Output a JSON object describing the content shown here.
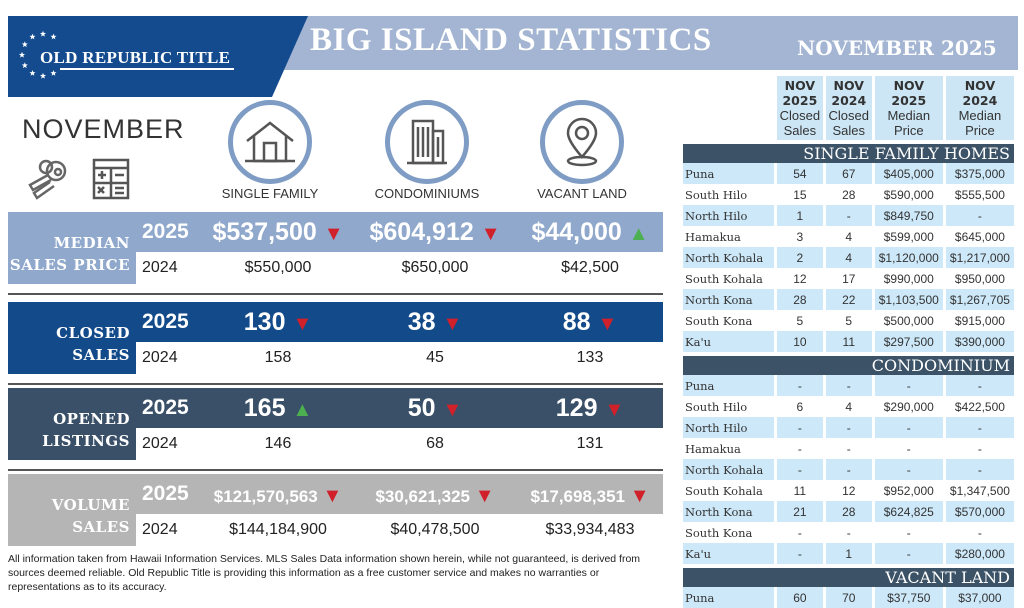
{
  "header": {
    "logo": "OLD REPUBLIC TITLE",
    "title": "BIG ISLAND STATISTICS",
    "subtitle": "NOVEMBER 2025",
    "month": "NOVEMBER"
  },
  "categories": [
    {
      "label": "SINGLE FAMILY",
      "icon": "house-icon"
    },
    {
      "label": "CONDOMINIUMS",
      "icon": "building-icon"
    },
    {
      "label": "VACANT LAND",
      "icon": "map-pin-icon"
    }
  ],
  "sections": [
    {
      "label1": "MEDIAN",
      "label2": "SALES PRICE",
      "color": "#8fa8cc",
      "year_current": "2025",
      "year_prior": "2024",
      "current": [
        "$537,500",
        "$604,912",
        "$44,000"
      ],
      "trend": [
        "down",
        "down",
        "up"
      ],
      "prior": [
        "$550,000",
        "$650,000",
        "$42,500"
      ]
    },
    {
      "label1": "CLOSED",
      "label2": "SALES",
      "color": "#134a8a",
      "year_current": "2025",
      "year_prior": "2024",
      "current": [
        "130",
        "38",
        "88"
      ],
      "trend": [
        "down",
        "down",
        "down"
      ],
      "prior": [
        "158",
        "45",
        "133"
      ]
    },
    {
      "label1": "OPENED",
      "label2": "LISTINGS",
      "color": "#3a5068",
      "year_current": "2025",
      "year_prior": "2024",
      "current": [
        "165",
        "50",
        "129"
      ],
      "trend": [
        "up",
        "down",
        "down"
      ],
      "prior": [
        "146",
        "68",
        "131"
      ]
    },
    {
      "label1": "VOLUME",
      "label2": "SALES",
      "color": "#b5b5b5",
      "year_current": "2025",
      "year_prior": "2024",
      "current": [
        "$121,570,563",
        "$30,621,325",
        "$17,698,351"
      ],
      "trend": [
        "down",
        "down",
        "down"
      ],
      "prior": [
        "$144,184,900",
        "$40,478,500",
        "$33,934,483"
      ]
    }
  ],
  "trend_colors": {
    "down": "#d0202a",
    "up": "#4caf50"
  },
  "footer": "All information taken from Hawaii Information Services.  MLS Sales Data information shown herein, while not guaranteed, is derived from sources deemed reliable.  Old Republic Title is providing this information as a free customer service and makes no warranties or representations as to its accuracy.",
  "table": {
    "columns": [
      {
        "l1": "NOV",
        "l2": "2025",
        "l3": "Closed",
        "l4": "Sales"
      },
      {
        "l1": "NOV",
        "l2": "2024",
        "l3": "Closed",
        "l4": "Sales"
      },
      {
        "l1": "NOV",
        "l2": "2025",
        "l3": "Median",
        "l4": "Price"
      },
      {
        "l1": "NOV",
        "l2": "2024",
        "l3": "Median",
        "l4": "Price"
      }
    ],
    "groups": [
      {
        "title": "SINGLE FAMILY HOMES",
        "rows": [
          [
            "Puna",
            "54",
            "67",
            "$405,000",
            "$375,000"
          ],
          [
            "South Hilo",
            "15",
            "28",
            "$590,000",
            "$555,500"
          ],
          [
            "North Hilo",
            "1",
            "-",
            "$849,750",
            "-"
          ],
          [
            "Hamakua",
            "3",
            "4",
            "$599,000",
            "$645,000"
          ],
          [
            "North Kohala",
            "2",
            "4",
            "$1,120,000",
            "$1,217,000"
          ],
          [
            "South Kohala",
            "12",
            "17",
            "$990,000",
            "$950,000"
          ],
          [
            "North Kona",
            "28",
            "22",
            "$1,103,500",
            "$1,267,705"
          ],
          [
            "South Kona",
            "5",
            "5",
            "$500,000",
            "$915,000"
          ],
          [
            "Ka'u",
            "10",
            "11",
            "$297,500",
            "$390,000"
          ]
        ]
      },
      {
        "title": "CONDOMINIUM",
        "rows": [
          [
            "Puna",
            "-",
            "-",
            "-",
            "-"
          ],
          [
            "South Hilo",
            "6",
            "4",
            "$290,000",
            "$422,500"
          ],
          [
            "North Hilo",
            "-",
            "-",
            "-",
            "-"
          ],
          [
            "Hamakua",
            "-",
            "-",
            "-",
            "-"
          ],
          [
            "North Kohala",
            "-",
            "-",
            "-",
            "-"
          ],
          [
            "South Kohala",
            "11",
            "12",
            "$952,000",
            "$1,347,500"
          ],
          [
            "North Kona",
            "21",
            "28",
            "$624,825",
            "$570,000"
          ],
          [
            "South Kona",
            "-",
            "-",
            "-",
            "-"
          ],
          [
            "Ka'u",
            "-",
            "1",
            "-",
            "$280,000"
          ]
        ]
      },
      {
        "title": "VACANT LAND",
        "rows": [
          [
            "Puna",
            "60",
            "70",
            "$37,750",
            "$37,000"
          ]
        ]
      }
    ]
  }
}
